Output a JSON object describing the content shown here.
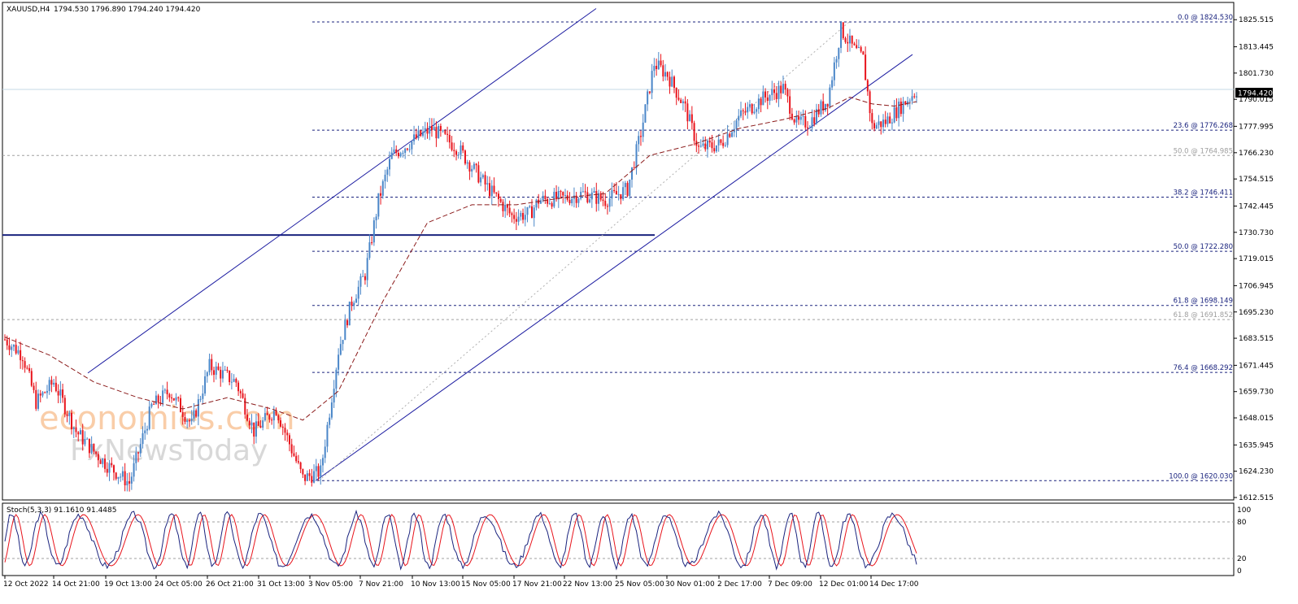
{
  "header": {
    "symbol": "XAUUSD,H4",
    "ohlc": "1794.530 1796.890 1794.240 1794.420"
  },
  "watermark": {
    "line1": "economies.com",
    "line2": "FxNewsToday"
  },
  "current_price_label": "1794.420",
  "stoch_label": "Stoch(5,3,3) 91.1610 91.4485",
  "colors": {
    "bull": "#4a86c8",
    "bear": "#e8141c",
    "fib": "#1a237e",
    "ma": "#8b1a1a",
    "stoch_main": "#1a237e",
    "stoch_signal": "#e8141c"
  },
  "chart_data": {
    "type": "candlestick",
    "title": "XAUUSD,H4",
    "ylim": [
      1612.515,
      1831.4
    ],
    "y_ticks": [
      "1825.515",
      "1813.445",
      "1801.730",
      "1790.015",
      "1777.995",
      "1766.230",
      "1754.515",
      "1742.445",
      "1730.730",
      "1719.015",
      "1706.945",
      "1695.230",
      "1683.515",
      "1671.445",
      "1659.730",
      "1648.015",
      "1635.945",
      "1624.230",
      "1612.515"
    ],
    "x_ticks": [
      "12 Oct 2022",
      "14 Oct 21:00",
      "19 Oct 13:00",
      "24 Oct 05:00",
      "26 Oct 21:00",
      "31 Oct 13:00",
      "3 Nov 05:00",
      "7 Nov 21:00",
      "10 Nov 13:00",
      "15 Nov 05:00",
      "17 Nov 21:00",
      "22 Nov 13:00",
      "25 Nov 05:00",
      "30 Nov 01:00",
      "2 Dec 17:00",
      "7 Dec 09:00",
      "12 Dec 01:00",
      "14 Dec 17:00"
    ],
    "fib_levels": [
      {
        "label": "0.0 @ 1824.530",
        "price": 1824.53,
        "style": "dark"
      },
      {
        "label": "23.6 @ 1776.268",
        "price": 1776.268,
        "style": "dark"
      },
      {
        "label": "50.0 @ 1764.985",
        "price": 1764.985,
        "style": "light"
      },
      {
        "label": "38.2 @ 1746.411",
        "price": 1746.411,
        "style": "dark"
      },
      {
        "label": "50.0 @ 1722.280",
        "price": 1722.28,
        "style": "dark"
      },
      {
        "label": "61.8 @ 1698.149",
        "price": 1698.149,
        "style": "dark"
      },
      {
        "label": "61.8 @ 1691.852",
        "price": 1691.852,
        "style": "light"
      },
      {
        "label": "76.4 @ 1668.292",
        "price": 1668.292,
        "style": "dark"
      },
      {
        "label": "100.0 @ 1620.030",
        "price": 1620.03,
        "style": "dark"
      }
    ],
    "support_line_price": 1729.5,
    "channel": {
      "lower": [
        [
          1620,
          0
        ],
        [
          1810,
          1
        ]
      ],
      "upper": [
        [
          1668,
          0
        ],
        [
          1858,
          1
        ]
      ]
    },
    "anchors": [
      [
        0,
        1683
      ],
      [
        8,
        1676
      ],
      [
        14,
        1655
      ],
      [
        22,
        1664
      ],
      [
        32,
        1642
      ],
      [
        40,
        1633
      ],
      [
        46,
        1627
      ],
      [
        56,
        1619
      ],
      [
        66,
        1653
      ],
      [
        74,
        1660
      ],
      [
        84,
        1645
      ],
      [
        92,
        1671
      ],
      [
        104,
        1664
      ],
      [
        112,
        1642
      ],
      [
        122,
        1652
      ],
      [
        134,
        1621
      ],
      [
        142,
        1624
      ],
      [
        150,
        1678
      ],
      [
        156,
        1700
      ],
      [
        162,
        1712
      ],
      [
        168,
        1745
      ],
      [
        174,
        1765
      ],
      [
        184,
        1772
      ],
      [
        192,
        1777
      ],
      [
        204,
        1768
      ],
      [
        216,
        1752
      ],
      [
        228,
        1738
      ],
      [
        236,
        1739
      ],
      [
        240,
        1745
      ],
      [
        252,
        1746
      ],
      [
        260,
        1748
      ],
      [
        270,
        1745
      ],
      [
        280,
        1750
      ],
      [
        286,
        1775
      ],
      [
        292,
        1806
      ],
      [
        298,
        1801
      ],
      [
        306,
        1786
      ],
      [
        312,
        1768
      ],
      [
        322,
        1770
      ],
      [
        330,
        1782
      ],
      [
        340,
        1790
      ],
      [
        350,
        1795
      ],
      [
        356,
        1779
      ],
      [
        362,
        1780
      ],
      [
        370,
        1790
      ],
      [
        376,
        1821
      ],
      [
        382,
        1812
      ],
      [
        386,
        1808
      ],
      [
        390,
        1778
      ],
      [
        396,
        1780
      ],
      [
        404,
        1788
      ],
      [
        410,
        1794
      ]
    ],
    "ma_points": [
      [
        0,
        1684
      ],
      [
        20,
        1676
      ],
      [
        40,
        1664
      ],
      [
        60,
        1657
      ],
      [
        80,
        1652
      ],
      [
        100,
        1657
      ],
      [
        120,
        1652
      ],
      [
        134,
        1647
      ],
      [
        150,
        1660
      ],
      [
        170,
        1700
      ],
      [
        190,
        1735
      ],
      [
        210,
        1743
      ],
      [
        230,
        1743
      ],
      [
        250,
        1746
      ],
      [
        270,
        1748
      ],
      [
        290,
        1765
      ],
      [
        310,
        1770
      ],
      [
        330,
        1777
      ],
      [
        350,
        1781
      ],
      [
        370,
        1786
      ],
      [
        380,
        1791
      ],
      [
        390,
        1788
      ],
      [
        400,
        1787
      ],
      [
        410,
        1789
      ]
    ],
    "stochastic": {
      "k": 91.161,
      "d": 91.4485,
      "levels": [
        80,
        20
      ],
      "range": [
        0,
        100
      ]
    }
  }
}
